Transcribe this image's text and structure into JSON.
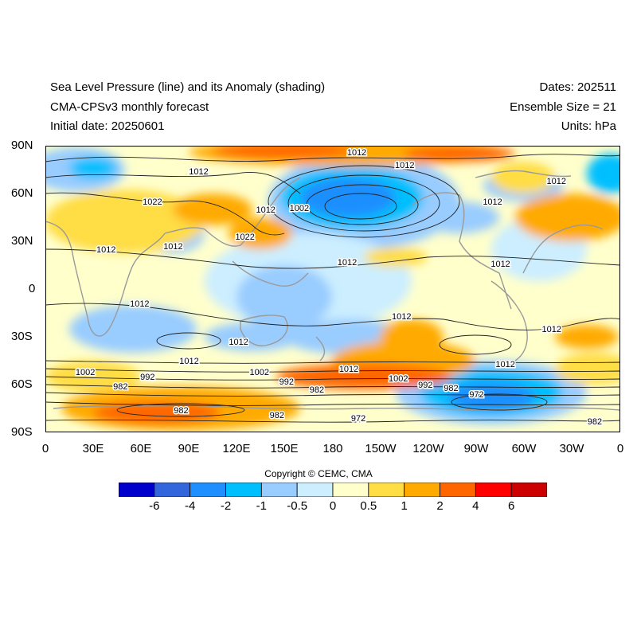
{
  "header": {
    "title_line1": "Sea Level Pressure (line) and its Anomaly (shading)",
    "title_line2": "CMA-CPSv3 monthly forecast",
    "title_line3": "Initial date: 20250601",
    "dates": "Dates: 202511",
    "ensemble": "Ensemble Size = 21",
    "units": "Units: hPa"
  },
  "axes": {
    "lat_labels": [
      "90N",
      "60N",
      "30N",
      "0",
      "30S",
      "60S",
      "90S"
    ],
    "lon_labels": [
      "0",
      "30E",
      "60E",
      "90E",
      "120E",
      "150E",
      "180",
      "150W",
      "120W",
      "90W",
      "60W",
      "30W",
      "0"
    ]
  },
  "contour_labels": [
    {
      "text": "1012",
      "lon": 195,
      "lat": 86
    },
    {
      "text": "1012",
      "lon": 225,
      "lat": 78
    },
    {
      "text": "1012",
      "lon": 96,
      "lat": 74
    },
    {
      "text": "1012",
      "lon": 320,
      "lat": 68
    },
    {
      "text": "1012",
      "lon": 280,
      "lat": 55
    },
    {
      "text": "1022",
      "lon": 67,
      "lat": 55
    },
    {
      "text": "1012",
      "lon": 138,
      "lat": 50
    },
    {
      "text": "1002",
      "lon": 159,
      "lat": 51
    },
    {
      "text": "1022",
      "lon": 125,
      "lat": 33
    },
    {
      "text": "1012",
      "lon": 38,
      "lat": 25
    },
    {
      "text": "1012",
      "lon": 80,
      "lat": 27
    },
    {
      "text": "1012",
      "lon": 189,
      "lat": 17
    },
    {
      "text": "1012",
      "lon": 285,
      "lat": 16
    },
    {
      "text": "1012",
      "lon": 59,
      "lat": -9
    },
    {
      "text": "1012",
      "lon": 223,
      "lat": -17
    },
    {
      "text": "1012",
      "lon": 317,
      "lat": -25
    },
    {
      "text": "1012",
      "lon": 121,
      "lat": -33
    },
    {
      "text": "1012",
      "lon": 90,
      "lat": -45
    },
    {
      "text": "1012",
      "lon": 190,
      "lat": -50
    },
    {
      "text": "1012",
      "lon": 288,
      "lat": -47
    },
    {
      "text": "1002",
      "lon": 25,
      "lat": -52
    },
    {
      "text": "1002",
      "lon": 134,
      "lat": -52
    },
    {
      "text": "1002",
      "lon": 221,
      "lat": -56
    },
    {
      "text": "992",
      "lon": 64,
      "lat": -55
    },
    {
      "text": "992",
      "lon": 151,
      "lat": -58
    },
    {
      "text": "992",
      "lon": 238,
      "lat": -60
    },
    {
      "text": "982",
      "lon": 47,
      "lat": -61
    },
    {
      "text": "982",
      "lon": 170,
      "lat": -63
    },
    {
      "text": "982",
      "lon": 254,
      "lat": -62
    },
    {
      "text": "972",
      "lon": 270,
      "lat": -66
    },
    {
      "text": "982",
      "lon": 85,
      "lat": -76
    },
    {
      "text": "982",
      "lon": 145,
      "lat": -79
    },
    {
      "text": "972",
      "lon": 196,
      "lat": -81
    },
    {
      "text": "982",
      "lon": 344,
      "lat": -83
    }
  ],
  "colorbar": {
    "colors": [
      "#0000cc",
      "#3366dd",
      "#1f8fff",
      "#00bfff",
      "#99ccff",
      "#cceeff",
      "#ffffcc",
      "#ffdd44",
      "#ffaa00",
      "#ff6600",
      "#ff0000",
      "#cc0000"
    ],
    "labels": [
      "-6",
      "-4",
      "-2",
      "-1",
      "-0.5",
      "0",
      "0.5",
      "1",
      "2",
      "4",
      "6"
    ]
  },
  "copyright": "Copyright © CEMC, CMA"
}
